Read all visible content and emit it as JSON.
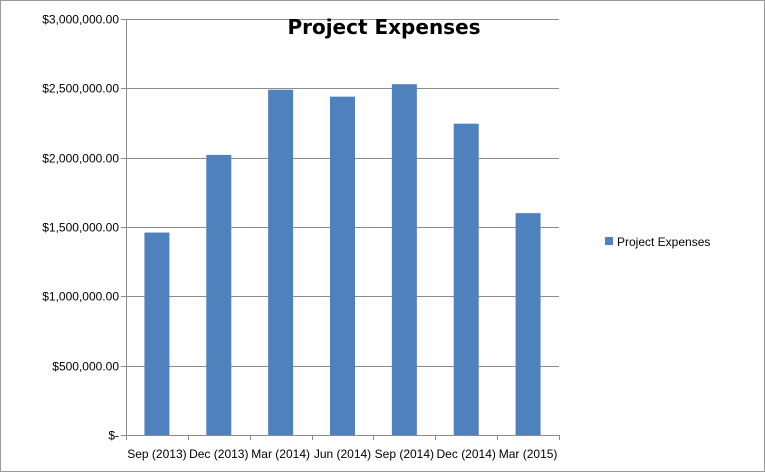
{
  "chart_data": {
    "type": "bar",
    "title": "Project Expenses",
    "xlabel": "",
    "ylabel": "",
    "categories": [
      "Sep (2013)",
      "Dec (2013)",
      "Mar (2014)",
      "Jun (2014)",
      "Sep (2014)",
      "Dec (2014)",
      "Mar (2015)"
    ],
    "series": [
      {
        "name": "Project Expenses",
        "color": "#4F81BD",
        "values": [
          1460000,
          2020000,
          2490000,
          2440000,
          2530000,
          2245000,
          1600000
        ]
      }
    ],
    "ylim": [
      0,
      3000000
    ],
    "yticks": [
      0,
      500000,
      1000000,
      1500000,
      2000000,
      2500000,
      3000000
    ],
    "ytick_labels": [
      "$-",
      "$500,000.00",
      "$1,000,000.00",
      "$1,500,000.00",
      "$2,000,000.00",
      "$2,500,000.00",
      "$3,000,000.00"
    ],
    "grid": true,
    "legend": {
      "position": "right",
      "entries": [
        "Project Expenses"
      ]
    }
  }
}
